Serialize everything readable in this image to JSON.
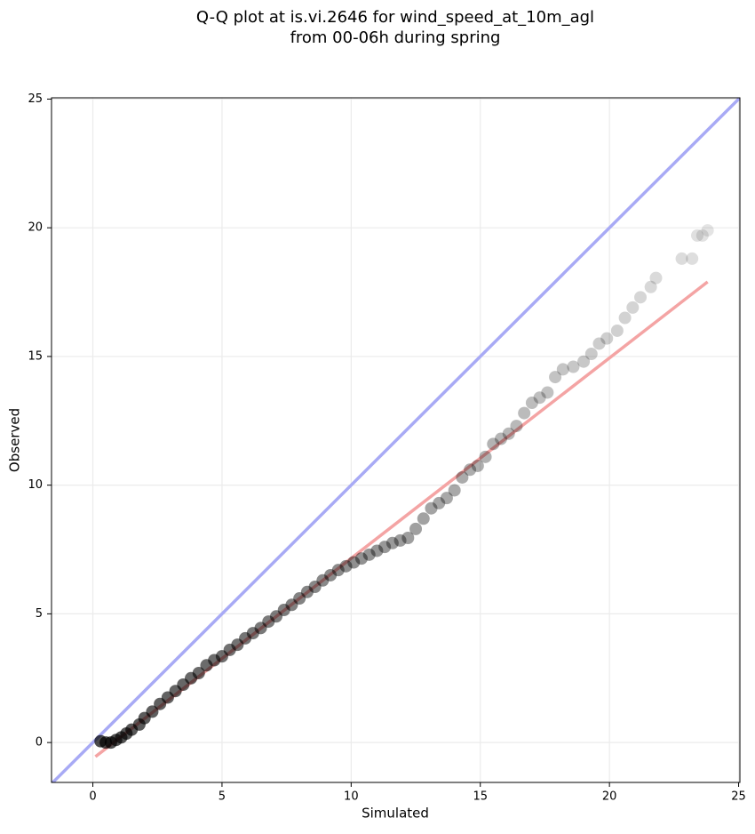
{
  "chart_data": {
    "type": "scatter",
    "title": [
      "Q-Q plot at is.vi.2646 for wind_speed_at_10m_agl",
      "from 00-06h during spring"
    ],
    "xlabel": "Simulated",
    "ylabel": "Observed",
    "xlim": [
      -1.6,
      25.05
    ],
    "ylim": [
      -1.55,
      25.05
    ],
    "xticks": [
      0,
      5,
      10,
      15,
      20,
      25
    ],
    "yticks": [
      0,
      5,
      10,
      15,
      20,
      25
    ],
    "grid": true,
    "color": "#000000",
    "identity_line": {
      "color": "#a8aaf5"
    },
    "fit_line": {
      "x": [
        0.1,
        23.8
      ],
      "y": [
        -0.55,
        17.9
      ],
      "color": "#f4a4a4"
    },
    "x": [
      0.3,
      0.5,
      0.7,
      0.9,
      1.1,
      1.3,
      1.5,
      1.8,
      2.0,
      2.3,
      2.6,
      2.9,
      3.2,
      3.5,
      3.8,
      4.1,
      4.4,
      4.7,
      5.0,
      5.3,
      5.6,
      5.9,
      6.2,
      6.5,
      6.8,
      7.1,
      7.4,
      7.7,
      8.0,
      8.3,
      8.6,
      8.9,
      9.2,
      9.5,
      9.8,
      10.1,
      10.4,
      10.7,
      11.0,
      11.3,
      11.6,
      11.9,
      12.2,
      12.5,
      12.8,
      13.1,
      13.4,
      13.7,
      14.0,
      14.3,
      14.6,
      14.9,
      15.2,
      15.5,
      15.8,
      16.1,
      16.4,
      16.7,
      17.0,
      17.3,
      17.6,
      17.9,
      18.2,
      18.6,
      19.0,
      19.3,
      19.6,
      19.9,
      20.3,
      20.6,
      20.9,
      21.2,
      21.6,
      21.8,
      22.8,
      23.2,
      23.4,
      23.6,
      23.8
    ],
    "y": [
      0.05,
      0,
      0,
      0.1,
      0.2,
      0.35,
      0.5,
      0.7,
      0.95,
      1.2,
      1.5,
      1.75,
      2.0,
      2.25,
      2.5,
      2.7,
      3.0,
      3.2,
      3.35,
      3.6,
      3.8,
      4.05,
      4.25,
      4.45,
      4.7,
      4.9,
      5.15,
      5.35,
      5.6,
      5.85,
      6.05,
      6.3,
      6.5,
      6.7,
      6.85,
      7.0,
      7.15,
      7.3,
      7.45,
      7.6,
      7.75,
      7.85,
      7.95,
      8.3,
      8.7,
      9.1,
      9.3,
      9.5,
      9.8,
      10.3,
      10.6,
      10.75,
      11.1,
      11.6,
      11.8,
      12.0,
      12.3,
      12.8,
      13.2,
      13.4,
      13.6,
      14.2,
      14.5,
      14.6,
      14.8,
      15.1,
      15.5,
      15.7,
      16.0,
      16.5,
      16.9,
      17.3,
      17.7,
      18.05,
      18.8,
      18.8,
      19.7,
      19.7,
      19.9
    ]
  }
}
